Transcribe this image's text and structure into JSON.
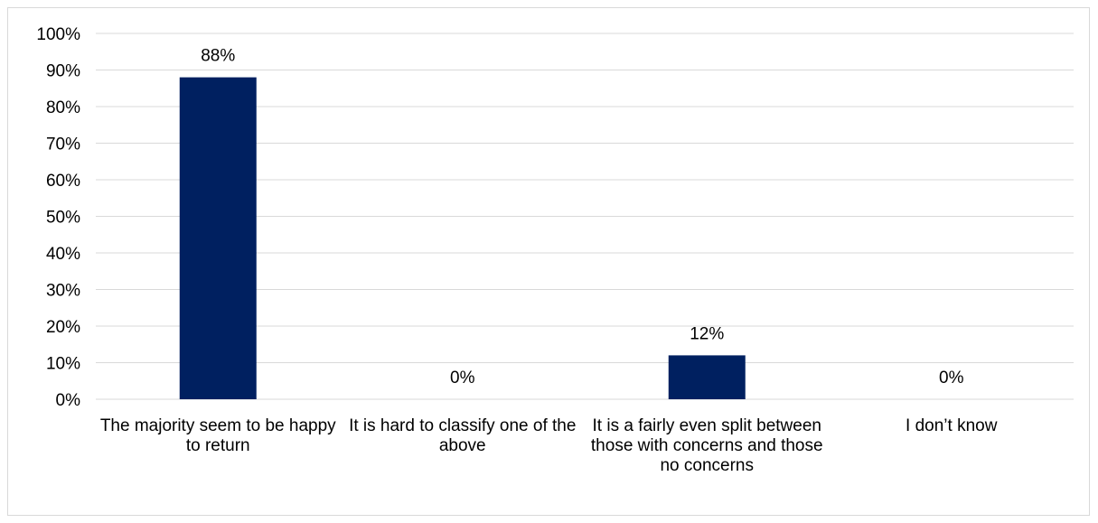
{
  "chart_data": {
    "type": "bar",
    "categories": [
      "The majority seem to be happy to return",
      "It is hard to classify one of the above",
      "It is a fairly even split between those with concerns and those no concerns",
      "I don’t know"
    ],
    "values": [
      88,
      0,
      12,
      0
    ],
    "value_labels": [
      "88%",
      "0%",
      "12%",
      "0%"
    ],
    "y_ticks": [
      "0%",
      "10%",
      "20%",
      "30%",
      "40%",
      "50%",
      "60%",
      "70%",
      "80%",
      "90%",
      "100%"
    ],
    "ylim": [
      0,
      100
    ],
    "grid": true,
    "bar_color": "#002060",
    "title": "",
    "xlabel": "",
    "ylabel": ""
  }
}
